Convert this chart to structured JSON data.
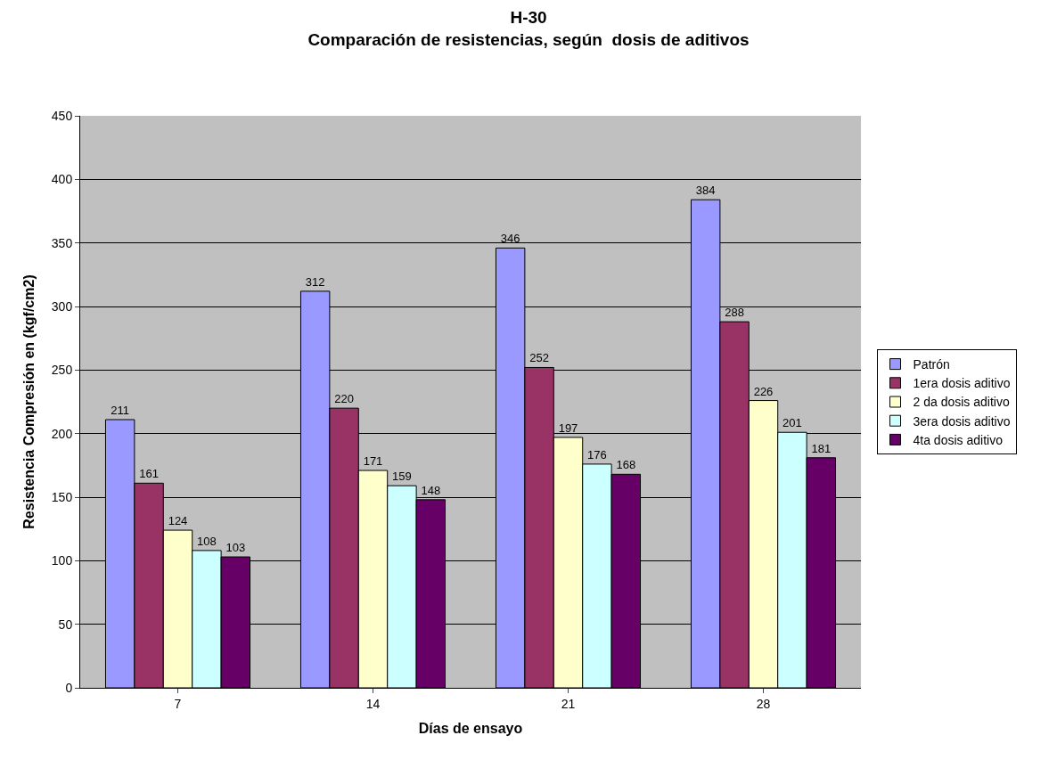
{
  "chart_data": {
    "type": "bar",
    "title": "H-30\nComparación de resistencias, según  dosis de aditivos",
    "xlabel": "Días de ensayo",
    "ylabel": "Resistencia Compresión en (kgf/cm2)",
    "categories": [
      "7",
      "14",
      "21",
      "28"
    ],
    "series": [
      {
        "name": "Patrón",
        "color": "#9999ff",
        "values": [
          211,
          312,
          346,
          384
        ]
      },
      {
        "name": "1era dosis aditivo",
        "color": "#993366",
        "values": [
          161,
          220,
          252,
          288
        ]
      },
      {
        "name": "2 da dosis aditivo",
        "color": "#ffffcc",
        "values": [
          124,
          171,
          197,
          226
        ]
      },
      {
        "name": "3era dosis aditivo",
        "color": "#ccffff",
        "values": [
          108,
          159,
          176,
          201
        ]
      },
      {
        "name": "4ta dosis aditivo",
        "color": "#660066",
        "values": [
          103,
          148,
          168,
          181
        ]
      }
    ],
    "ylim": [
      0,
      450
    ],
    "yticks": [
      0,
      50,
      100,
      150,
      200,
      250,
      300,
      350,
      400,
      450
    ],
    "grid": "y",
    "legend": "right",
    "data_labels": true
  }
}
